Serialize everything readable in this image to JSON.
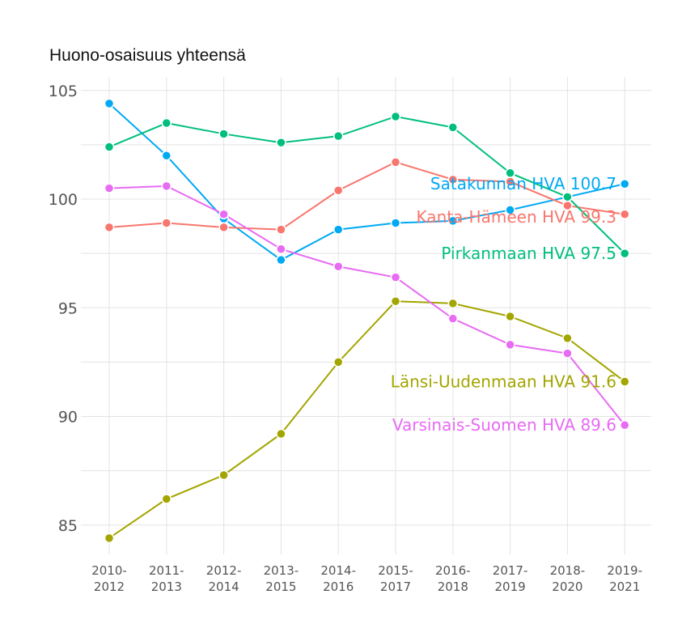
{
  "chart_data": {
    "type": "line",
    "title": "Huono-osaisuus yhteensä",
    "xlabel": "",
    "ylabel": "",
    "categories": [
      "2010-\n2012",
      "2011-\n2013",
      "2012-\n2014",
      "2013-\n2015",
      "2014-\n2016",
      "2015-\n2017",
      "2016-\n2018",
      "2017-\n2019",
      "2018-\n2020",
      "2019-\n2021"
    ],
    "ylim": [
      83.5,
      106
    ],
    "yticks": [
      85,
      90,
      95,
      100,
      105
    ],
    "grid": true,
    "legend": "none (direct end labels)",
    "series": [
      {
        "name": "Satakunnan HVA",
        "label": "Satakunnan HVA 100.7",
        "color": "#00A9F4",
        "values": [
          104.4,
          102.0,
          99.1,
          97.2,
          98.6,
          98.9,
          99.0,
          99.5,
          100.1,
          100.7
        ]
      },
      {
        "name": "Kanta-Hämeen HVA",
        "label": "Kanta-Hämeen HVA 99.3",
        "color": "#F8766D",
        "values": [
          98.7,
          98.9,
          98.7,
          98.6,
          100.4,
          101.7,
          100.9,
          100.8,
          99.7,
          99.3
        ]
      },
      {
        "name": "Pirkanmaan HVA",
        "label": "Pirkanmaan HVA 97.5",
        "color": "#00BF7D",
        "values": [
          102.4,
          103.5,
          103.0,
          102.6,
          102.9,
          103.8,
          103.3,
          101.2,
          100.1,
          97.5
        ]
      },
      {
        "name": "Länsi-Uudenmaan HVA",
        "label": "Länsi-Uudenmaan HVA 91.6",
        "color": "#A3A500",
        "values": [
          84.4,
          86.2,
          87.3,
          89.2,
          92.5,
          95.3,
          95.2,
          94.6,
          93.6,
          91.6
        ]
      },
      {
        "name": "Varsinais-Suomen HVA",
        "label": "Varsinais-Suomen HVA 89.6",
        "color": "#E76BF3",
        "values": [
          100.5,
          100.6,
          99.3,
          97.7,
          96.9,
          96.4,
          94.5,
          93.3,
          92.9,
          89.6
        ]
      }
    ]
  }
}
